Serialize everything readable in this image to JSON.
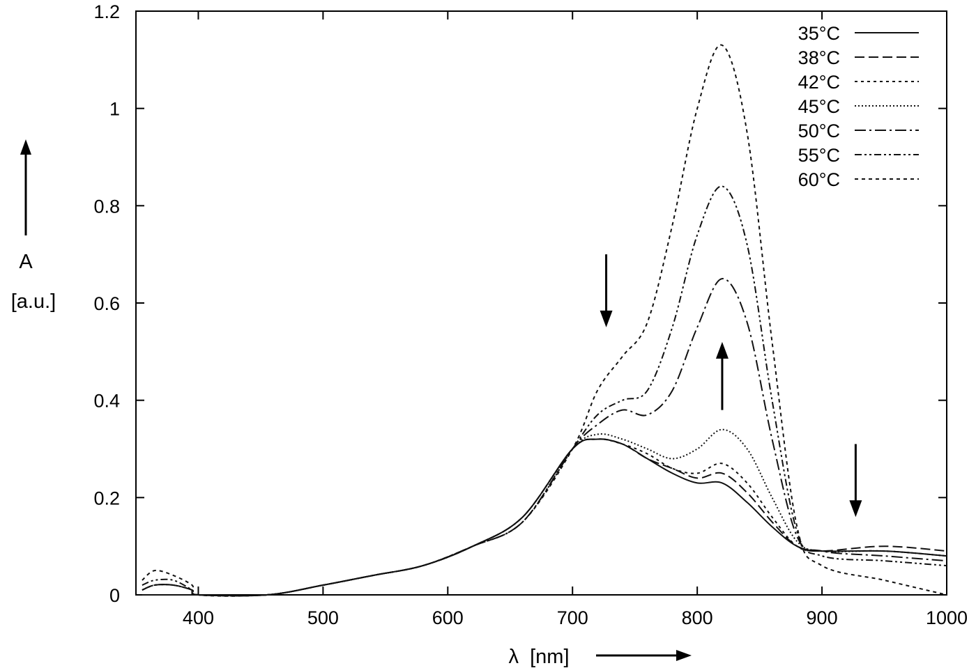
{
  "chart_data": {
    "type": "line",
    "xlabel": "λ  [nm]",
    "ylabel_top": "A",
    "ylabel_bottom": "[a.u.]",
    "xlim": [
      350,
      1000
    ],
    "ylim": [
      0,
      1.2
    ],
    "x_ticks": [
      {
        "value": 400,
        "label": "400"
      },
      {
        "value": 500,
        "label": "500"
      },
      {
        "value": 600,
        "label": "600"
      },
      {
        "value": 700,
        "label": "700"
      },
      {
        "value": 800,
        "label": "800"
      },
      {
        "value": 900,
        "label": "900"
      },
      {
        "value": 1000,
        "label": "1000"
      }
    ],
    "y_ticks": [
      {
        "value": 0,
        "label": "0"
      },
      {
        "value": 0.2,
        "label": "0.2"
      },
      {
        "value": 0.4,
        "label": "0.4"
      },
      {
        "value": 0.6,
        "label": "0.6"
      },
      {
        "value": 0.8,
        "label": "0.8"
      },
      {
        "value": 1.0,
        "label": "1"
      },
      {
        "value": 1.2,
        "label": "1.2"
      }
    ],
    "grid": false,
    "legend_position": "top-right",
    "annotations": [
      {
        "kind": "arrow-down",
        "x": 727,
        "y_from": 0.7,
        "y_to": 0.55
      },
      {
        "kind": "arrow-up",
        "x": 820,
        "y_from": 0.38,
        "y_to": 0.52
      },
      {
        "kind": "arrow-down",
        "x": 927,
        "y_from": 0.31,
        "y_to": 0.16
      }
    ],
    "series": [
      {
        "name": "35°C",
        "dash": "",
        "x": [
          355,
          365,
          380,
          395,
          400,
          455,
          500,
          540,
          580,
          620,
          660,
          700,
          720,
          740,
          760,
          780,
          800,
          820,
          840,
          860,
          880,
          900,
          950,
          1000
        ],
        "y": [
          0,
          0,
          0,
          0,
          0,
          0,
          0.02,
          0.04,
          0.06,
          0.1,
          0.16,
          0.3,
          0.32,
          0.31,
          0.28,
          0.25,
          0.23,
          0.23,
          0.19,
          0.14,
          0.1,
          0.09,
          0.09,
          0.08
        ]
      },
      {
        "name": "38°C",
        "dash": "14 6",
        "x": [
          355,
          365,
          380,
          395,
          400,
          455,
          500,
          540,
          580,
          620,
          660,
          700,
          720,
          740,
          760,
          780,
          800,
          820,
          840,
          860,
          880,
          900,
          950,
          1000
        ],
        "y": [
          0.01,
          0.02,
          0.02,
          0.01,
          0,
          0,
          0.02,
          0.04,
          0.06,
          0.1,
          0.16,
          0.3,
          0.32,
          0.31,
          0.28,
          0.26,
          0.24,
          0.25,
          0.21,
          0.15,
          0.1,
          0.09,
          0.1,
          0.09
        ]
      },
      {
        "name": "42°C",
        "dash": "4 5",
        "x": [
          355,
          365,
          380,
          395,
          400,
          455,
          500,
          540,
          580,
          620,
          660,
          700,
          720,
          740,
          760,
          780,
          800,
          820,
          840,
          860,
          880,
          900,
          950,
          1000
        ],
        "y": [
          0.01,
          0.02,
          0.02,
          0.01,
          0,
          0,
          0.02,
          0.04,
          0.06,
          0.1,
          0.16,
          0.3,
          0.32,
          0.31,
          0.29,
          0.26,
          0.25,
          0.27,
          0.23,
          0.16,
          0.1,
          0.09,
          0.09,
          0.08
        ]
      },
      {
        "name": "45°C",
        "dash": "2 3",
        "x": [
          355,
          365,
          380,
          395,
          400,
          455,
          500,
          540,
          580,
          620,
          660,
          700,
          720,
          740,
          760,
          780,
          800,
          820,
          840,
          860,
          880,
          900,
          950,
          1000
        ],
        "y": [
          0.01,
          0.02,
          0.02,
          0.01,
          0,
          0,
          0.02,
          0.04,
          0.06,
          0.1,
          0.16,
          0.3,
          0.33,
          0.32,
          0.3,
          0.28,
          0.3,
          0.34,
          0.3,
          0.2,
          0.11,
          0.09,
          0.09,
          0.08
        ]
      },
      {
        "name": "50°C",
        "dash": "16 5 3 5",
        "x": [
          355,
          365,
          380,
          395,
          400,
          455,
          500,
          540,
          580,
          620,
          660,
          700,
          720,
          740,
          760,
          780,
          800,
          820,
          840,
          860,
          880,
          900,
          950,
          1000
        ],
        "y": [
          0.01,
          0.02,
          0.02,
          0.01,
          0,
          0,
          0.02,
          0.04,
          0.06,
          0.1,
          0.15,
          0.3,
          0.35,
          0.38,
          0.37,
          0.42,
          0.55,
          0.65,
          0.56,
          0.32,
          0.12,
          0.09,
          0.08,
          0.07
        ]
      },
      {
        "name": "55°C",
        "dash": "10 4 3 4 3 4",
        "x": [
          355,
          365,
          380,
          395,
          400,
          455,
          500,
          540,
          580,
          620,
          660,
          700,
          720,
          740,
          760,
          780,
          800,
          820,
          840,
          860,
          880,
          900,
          950,
          1000
        ],
        "y": [
          0.02,
          0.03,
          0.03,
          0.01,
          0,
          0,
          0.02,
          0.04,
          0.06,
          0.1,
          0.15,
          0.3,
          0.37,
          0.4,
          0.42,
          0.55,
          0.74,
          0.84,
          0.72,
          0.4,
          0.13,
          0.08,
          0.07,
          0.06
        ]
      },
      {
        "name": "60°C",
        "dash": "5 5",
        "x": [
          355,
          365,
          380,
          395,
          400,
          455,
          500,
          540,
          580,
          620,
          660,
          700,
          720,
          740,
          760,
          780,
          800,
          820,
          840,
          860,
          880,
          900,
          950,
          1000
        ],
        "y": [
          0.03,
          0.05,
          0.04,
          0.02,
          0,
          0,
          0.02,
          0.04,
          0.06,
          0.1,
          0.15,
          0.3,
          0.42,
          0.49,
          0.56,
          0.76,
          1.0,
          1.13,
          0.95,
          0.52,
          0.14,
          0.06,
          0.03,
          0.0
        ]
      }
    ]
  }
}
